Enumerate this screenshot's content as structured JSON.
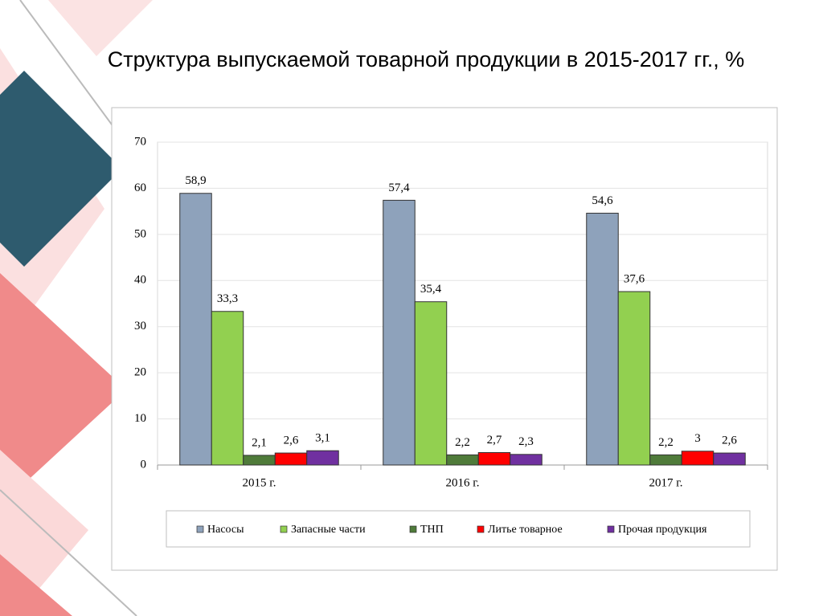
{
  "chart_data": {
    "type": "bar",
    "title": "Структура выпускаемой товарной продукции в 2015-2017 гг., %",
    "categories": [
      "2015 г.",
      "2016 г.",
      "2017 г."
    ],
    "series": [
      {
        "name": "Насосы",
        "color": "#8ea2bb",
        "values": [
          58.9,
          57.4,
          54.6
        ],
        "value_labels": [
          "58,9",
          "57,4",
          "54,6"
        ]
      },
      {
        "name": "Запасные части",
        "color": "#92d050",
        "values": [
          33.3,
          35.4,
          37.6
        ],
        "value_labels": [
          "33,3",
          "35,4",
          "37,6"
        ]
      },
      {
        "name": "ТНП",
        "color": "#4f7b3a",
        "values": [
          2.1,
          2.2,
          2.2
        ],
        "value_labels": [
          "2,1",
          "2,2",
          "2,2"
        ]
      },
      {
        "name": "Литье товарное",
        "color": "#ff0000",
        "values": [
          2.6,
          2.7,
          3
        ],
        "value_labels": [
          "2,6",
          "2,7",
          "3"
        ]
      },
      {
        "name": "Прочая продукция",
        "color": "#7030a0",
        "values": [
          3.1,
          2.3,
          2.6
        ],
        "value_labels": [
          "3,1",
          "2,3",
          "2,6"
        ]
      }
    ],
    "ylim": [
      0,
      70
    ],
    "yticks": [
      0,
      10,
      20,
      30,
      40,
      50,
      60,
      70
    ],
    "grid": true,
    "legend": "bottom"
  }
}
